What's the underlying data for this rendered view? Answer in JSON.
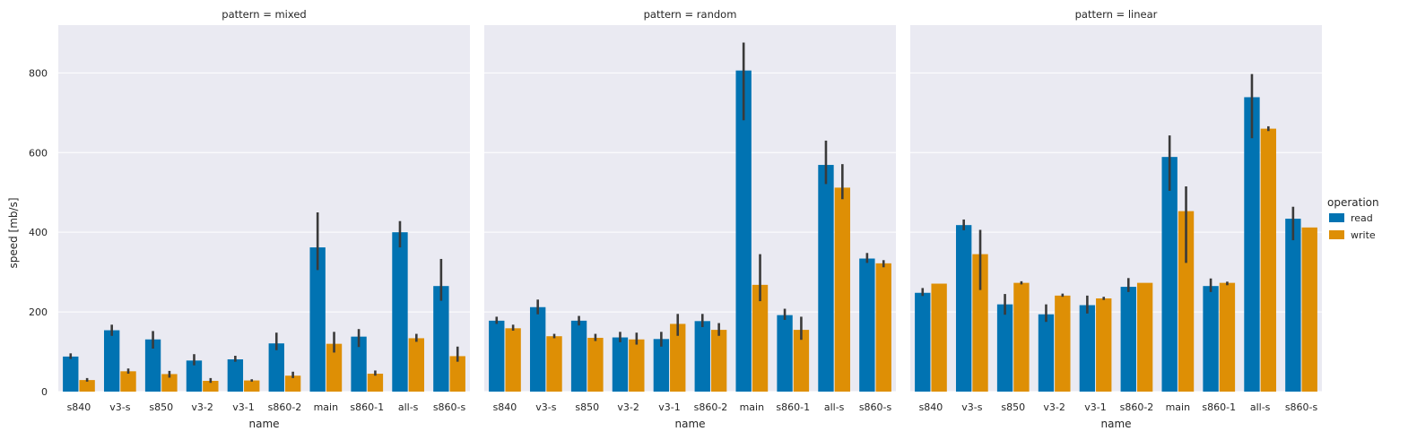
{
  "chart_data": {
    "type": "bar",
    "facet_label": "pattern",
    "xlabel": "name",
    "ylabel": "speed [mb/s]",
    "ylim": [
      0,
      920
    ],
    "yticks": [
      0,
      200,
      400,
      600,
      800
    ],
    "grid": true,
    "legend": {
      "title": "operation",
      "placement": "right",
      "entries": [
        "read",
        "write"
      ]
    },
    "colors": {
      "read": "#0173b2",
      "write": "#de8f05",
      "error_bar": "#3a3a3a",
      "panel_bg": "#eaeaf2"
    },
    "categories": [
      "s840",
      "v3-s",
      "s850",
      "v3-2",
      "v3-1",
      "s860-2",
      "main",
      "s860-1",
      "all-s",
      "s860-s"
    ],
    "panels": [
      {
        "title": "pattern = mixed",
        "series": [
          {
            "name": "read",
            "values": [
              88,
              154,
              131,
              78,
              81,
              121,
              362,
              138,
              400,
              265
            ],
            "err_low": [
              82,
              140,
              108,
              66,
              75,
              104,
              305,
              112,
              362,
              228
            ],
            "err_high": [
              96,
              168,
              152,
              94,
              90,
              148,
              450,
              157,
              428,
              333
            ]
          },
          {
            "name": "write",
            "values": [
              29,
              51,
              44,
              27,
              28,
              40,
              120,
              45,
              134,
              89
            ],
            "err_low": [
              25,
              45,
              35,
              22,
              25,
              34,
              98,
              40,
              125,
              75
            ],
            "err_high": [
              34,
              58,
              52,
              34,
              31,
              50,
              150,
              53,
              145,
              113
            ]
          }
        ]
      },
      {
        "title": "pattern = random",
        "series": [
          {
            "name": "read",
            "values": [
              178,
              212,
              178,
              136,
              132,
              177,
              806,
              192,
              569,
              334
            ],
            "err_low": [
              170,
              194,
              166,
              124,
              113,
              162,
              681,
              180,
              521,
              323
            ],
            "err_high": [
              188,
              231,
              190,
              150,
              150,
              195,
              876,
              208,
              630,
              348
            ]
          },
          {
            "name": "write",
            "values": [
              159,
              139,
              135,
              131,
              170,
              155,
              268,
              155,
              512,
              322
            ],
            "err_low": [
              153,
              134,
              127,
              118,
              140,
              140,
              227,
              130,
              483,
              312
            ],
            "err_high": [
              168,
              145,
              145,
              148,
              195,
              172,
              345,
              188,
              571,
              330
            ]
          }
        ]
      },
      {
        "title": "pattern = linear",
        "series": [
          {
            "name": "read",
            "values": [
              248,
              418,
              219,
              194,
              217,
              263,
              589,
              265,
              739,
              434
            ],
            "err_low": [
              240,
              405,
              193,
              175,
              196,
              250,
              504,
              250,
              636,
              380
            ],
            "err_high": [
              260,
              432,
              245,
              219,
              241,
              285,
              643,
              284,
              797,
              464
            ]
          },
          {
            "name": "write",
            "values": [
              271,
              345,
              273,
              241,
              234,
              273,
              453,
              273,
              660,
              412
            ],
            "err_low": [
              271,
              255,
              269,
              238,
              230,
              273,
              323,
              267,
              654,
              412
            ],
            "err_high": [
              271,
              406,
              277,
              246,
              238,
              273,
              515,
              276,
              666,
              412
            ]
          }
        ]
      }
    ]
  }
}
